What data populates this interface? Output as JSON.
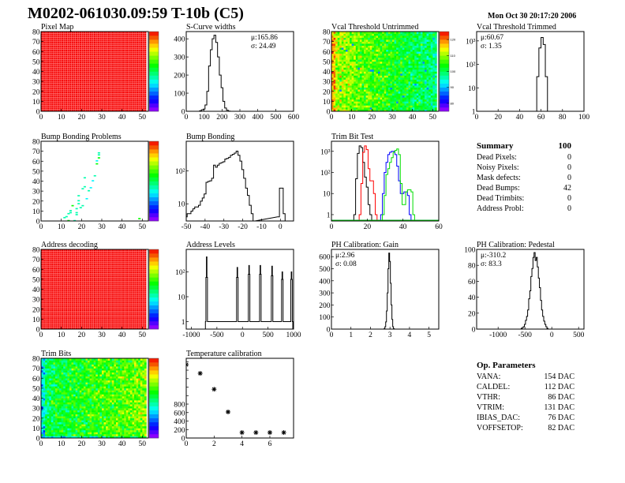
{
  "header": {
    "title": "M0202-061030.09:59 T-10b (C5)",
    "date": "Mon Oct 30 20:17:20 2006"
  },
  "summary": {
    "title": "Summary",
    "total": "100",
    "rows": [
      {
        "label": "Dead Pixels:",
        "value": "0"
      },
      {
        "label": "Noisy Pixels:",
        "value": "0"
      },
      {
        "label": "Mask defects:",
        "value": "0"
      },
      {
        "label": "Dead Bumps:",
        "value": "42"
      },
      {
        "label": "Dead Trimbits:",
        "value": "0"
      },
      {
        "label": "Address Probl:",
        "value": "0"
      }
    ]
  },
  "op_parameters": {
    "title": "Op. Parameters",
    "rows": [
      {
        "label": "VANA:",
        "value": "154 DAC"
      },
      {
        "label": "CALDEL:",
        "value": "112 DAC"
      },
      {
        "label": "VTHR:",
        "value": "86 DAC"
      },
      {
        "label": "VTRIM:",
        "value": "131 DAC"
      },
      {
        "label": "IBIAS_DAC:",
        "value": "76 DAC"
      },
      {
        "label": "VOFFSETOP:",
        "value": "82 DAC"
      }
    ]
  },
  "chart_data": [
    {
      "id": "pixel_map",
      "type": "heatmap",
      "title": "Pixel Map",
      "xlim": [
        0,
        53
      ],
      "ylim": [
        0,
        80
      ],
      "xticks": [
        0,
        10,
        20,
        30,
        40,
        50
      ],
      "yticks": [
        0,
        10,
        20,
        30,
        40,
        50,
        60,
        70,
        80
      ],
      "zlim": [
        0,
        10
      ],
      "uniform_value": 10
    },
    {
      "id": "s_curve",
      "type": "histogram",
      "title": "S-Curve widths",
      "xlim": [
        0,
        600
      ],
      "ylim": [
        0,
        440
      ],
      "xticks": [
        0,
        100,
        200,
        300,
        400,
        500,
        600
      ],
      "yticks": [
        0,
        100,
        200,
        300,
        400
      ],
      "stats": [
        "μ:165.86",
        "σ: 24.49"
      ],
      "stats_position": "top-right",
      "binwidth": 10,
      "series": [
        {
          "color": "#000000",
          "x": [
            80,
            90,
            100,
            110,
            120,
            130,
            140,
            150,
            160,
            170,
            180,
            190,
            200,
            210,
            220,
            230,
            240
          ],
          "y": [
            3,
            8,
            12,
            35,
            110,
            250,
            340,
            400,
            420,
            380,
            300,
            200,
            130,
            55,
            18,
            6,
            1
          ]
        }
      ]
    },
    {
      "id": "vcal_untrimmed",
      "type": "heatmap",
      "title": "Vcal Threshold Untrimmed",
      "xlim": [
        0,
        53
      ],
      "ylim": [
        0,
        80
      ],
      "xticks": [
        0,
        10,
        20,
        30,
        40,
        50
      ],
      "yticks": [
        0,
        10,
        20,
        30,
        40,
        50,
        60,
        70,
        80
      ],
      "zlim": [
        75,
        125
      ],
      "zticks": [
        80,
        90,
        100,
        110,
        120
      ]
    },
    {
      "id": "vcal_trimmed",
      "type": "histogram",
      "title": "Vcal Threshold Trimmed",
      "xlim": [
        0,
        100
      ],
      "ylim": [
        1,
        2500
      ],
      "ylog": true,
      "xticks": [
        0,
        20,
        40,
        60,
        80,
        100
      ],
      "yticks": [
        1,
        10,
        100,
        1000
      ],
      "ytick_labels": [
        "1",
        "10",
        "10²",
        "10³"
      ],
      "stats": [
        "μ:60.67",
        "σ: 1.35"
      ],
      "stats_position": "top-left",
      "binwidth": 2,
      "series": [
        {
          "color": "#000000",
          "x": [
            55,
            57,
            59,
            61,
            63,
            65
          ],
          "y": [
            1,
            30,
            500,
            1400,
            700,
            30
          ]
        }
      ]
    },
    {
      "id": "bump_problems",
      "type": "heatmap-scatter",
      "title": "Bump Bonding Problems",
      "xlim": [
        0,
        53
      ],
      "ylim": [
        0,
        80
      ],
      "xticks": [
        0,
        10,
        20,
        30,
        40,
        50
      ],
      "yticks": [
        0,
        10,
        20,
        30,
        40,
        50,
        60,
        70,
        80
      ],
      "zlim": [
        0,
        2
      ],
      "points": [
        [
          11,
          3,
          1
        ],
        [
          12,
          4,
          1
        ],
        [
          13,
          0,
          1.4
        ],
        [
          13,
          7,
          1
        ],
        [
          14,
          8,
          1
        ],
        [
          14,
          10,
          1
        ],
        [
          15,
          15,
          1.4
        ],
        [
          16,
          0,
          1
        ],
        [
          17,
          6,
          1
        ],
        [
          17,
          8,
          1
        ],
        [
          17,
          12,
          1
        ],
        [
          18,
          17,
          1
        ],
        [
          18,
          20,
          1
        ],
        [
          18,
          25,
          1
        ],
        [
          19,
          13,
          1
        ],
        [
          20,
          15,
          1
        ],
        [
          20,
          32,
          1
        ],
        [
          21,
          34,
          1
        ],
        [
          21,
          43,
          1
        ],
        [
          22,
          22,
          0.8
        ],
        [
          23,
          30,
          1
        ],
        [
          24,
          33,
          0.8
        ],
        [
          25,
          40,
          0.8
        ],
        [
          26,
          45,
          1
        ],
        [
          27,
          57,
          1.4
        ],
        [
          27,
          60,
          0.8
        ],
        [
          28,
          63,
          1.4
        ],
        [
          28,
          66,
          1
        ],
        [
          28,
          68,
          1
        ],
        [
          48,
          2,
          1.4
        ]
      ]
    },
    {
      "id": "bump_bonding",
      "type": "histogram",
      "title": "Bump Bonding",
      "xlim": [
        -50,
        7
      ],
      "ylim": [
        3,
        800
      ],
      "ylog": true,
      "xticks": [
        -50,
        -40,
        -30,
        -20,
        -10,
        0
      ],
      "yticks": [
        10,
        100
      ],
      "ytick_labels": [
        "10",
        "10²"
      ],
      "binwidth": 1,
      "series": [
        {
          "color": "#000000",
          "x": [
            -50,
            -49,
            -48,
            -47,
            -46,
            -45,
            -44,
            -43,
            -42,
            -41,
            -40,
            -39,
            -38,
            -37,
            -36,
            -35,
            -34,
            -33,
            -32,
            -31,
            -30,
            -29,
            -28,
            -27,
            -26,
            -25,
            -24,
            -23,
            -22,
            -21,
            -20,
            -19,
            -18,
            -17,
            -16,
            -15,
            -14,
            -1,
            0,
            1,
            2
          ],
          "y": [
            4,
            5,
            5,
            6,
            7,
            8,
            8,
            9,
            12,
            15,
            20,
            45,
            48,
            50,
            60,
            150,
            130,
            150,
            170,
            180,
            190,
            230,
            240,
            260,
            300,
            320,
            350,
            400,
            300,
            200,
            110,
            60,
            30,
            18,
            9,
            5,
            3,
            4,
            30,
            30,
            5
          ]
        }
      ]
    },
    {
      "id": "trim_bit_test",
      "type": "histogram",
      "title": "Trim Bit Test",
      "xlim": [
        0,
        60
      ],
      "ylim": [
        0.5,
        3000
      ],
      "ylog": true,
      "xticks": [
        0,
        20,
        40,
        60
      ],
      "yticks": [
        1,
        10,
        100,
        1000
      ],
      "ytick_labels": [
        "1",
        "10",
        "10²",
        "10³"
      ],
      "binwidth": 1,
      "series": [
        {
          "color": "#000000",
          "x": [
            13,
            14,
            15,
            16,
            17,
            18,
            19,
            20,
            21,
            22
          ],
          "y": [
            1,
            50,
            800,
            1800,
            1500,
            300,
            60,
            20,
            3,
            1
          ]
        },
        {
          "color": "#ff0000",
          "x": [
            16,
            17,
            18,
            19,
            20,
            21,
            22,
            23,
            24,
            25
          ],
          "y": [
            1,
            30,
            900,
            1800,
            1200,
            150,
            40,
            40,
            10,
            1
          ]
        },
        {
          "color": "#0000ff",
          "x": [
            28,
            29,
            30,
            31,
            32,
            33,
            34,
            35,
            36,
            37,
            38,
            39,
            40,
            41,
            42,
            43,
            44
          ],
          "y": [
            1,
            10,
            100,
            300,
            700,
            900,
            1000,
            1000,
            700,
            200,
            40,
            10,
            10,
            12,
            12,
            8,
            1
          ]
        },
        {
          "color": "#00dd00",
          "x": [
            29,
            30,
            31,
            32,
            33,
            34,
            35,
            36,
            37,
            38,
            39,
            40,
            41,
            42,
            43,
            44,
            45,
            46
          ],
          "y": [
            1,
            8,
            80,
            150,
            300,
            500,
            900,
            1100,
            1300,
            700,
            30,
            3,
            3,
            12,
            15,
            15,
            12,
            1
          ]
        }
      ]
    },
    {
      "id": "address_decoding",
      "type": "heatmap",
      "title": "Address decoding",
      "xlim": [
        0,
        53
      ],
      "ylim": [
        0,
        80
      ],
      "xticks": [
        0,
        10,
        20,
        30,
        40,
        50
      ],
      "yticks": [
        0,
        10,
        20,
        30,
        40,
        50,
        60,
        70,
        80
      ],
      "zlim": [
        0,
        1
      ],
      "uniform_value": 1
    },
    {
      "id": "address_levels",
      "type": "histogram",
      "title": "Address Levels",
      "xlim": [
        -1100,
        1000
      ],
      "ylim": [
        0.5,
        800
      ],
      "ylog": true,
      "xticks": [
        -1000,
        -500,
        0,
        500,
        1000
      ],
      "yticks": [
        1,
        10,
        100
      ],
      "ytick_labels": [
        "1",
        "10",
        "10²"
      ],
      "binwidth": 10,
      "series": [
        {
          "color": "#000000",
          "x": [
            -720,
            -710,
            -700,
            -690,
            -680,
            -120,
            -110,
            -100,
            -90,
            -80,
            110,
            120,
            130,
            140,
            150,
            330,
            340,
            350,
            360,
            370,
            560,
            570,
            580,
            590,
            600,
            760,
            770,
            780,
            790,
            800,
            940,
            950,
            960,
            970,
            980
          ],
          "y": [
            1,
            60,
            400,
            60,
            1,
            1,
            60,
            150,
            60,
            1,
            1,
            80,
            180,
            80,
            1,
            1,
            80,
            180,
            80,
            1,
            1,
            70,
            170,
            70,
            1,
            1,
            50,
            100,
            50,
            1,
            1,
            50,
            100,
            50,
            1
          ]
        }
      ]
    },
    {
      "id": "ph_gain",
      "type": "histogram",
      "title": "PH Calibration: Gain",
      "xlim": [
        0,
        5.5
      ],
      "ylim": [
        0,
        660
      ],
      "xticks": [
        0,
        1,
        2,
        3,
        4,
        5
      ],
      "yticks": [
        0,
        100,
        200,
        300,
        400,
        500,
        600
      ],
      "stats": [
        "μ:2.96",
        "σ: 0.08"
      ],
      "stats_position": "top-left",
      "binwidth": 0.04,
      "series": [
        {
          "color": "#000000",
          "x": [
            2.72,
            2.76,
            2.8,
            2.84,
            2.88,
            2.92,
            2.96,
            3.0,
            3.04,
            3.08,
            3.12,
            3.16,
            3.2
          ],
          "y": [
            5,
            20,
            60,
            150,
            300,
            500,
            630,
            560,
            380,
            200,
            80,
            20,
            3
          ]
        }
      ]
    },
    {
      "id": "ph_pedestal",
      "type": "histogram",
      "title": "PH Calibration: Pedestal",
      "xlim": [
        -1400,
        600
      ],
      "ylim": [
        0,
        100
      ],
      "xticks": [
        -1000,
        -500,
        0,
        500
      ],
      "yticks": [
        0,
        20,
        40,
        60,
        80,
        100
      ],
      "stats": [
        "μ:-310.2",
        "σ: 83.3"
      ],
      "stats_position": "top-left",
      "binwidth": 20,
      "series": [
        {
          "color": "#000000",
          "x": [
            -560,
            -540,
            -520,
            -500,
            -480,
            -460,
            -440,
            -420,
            -400,
            -380,
            -360,
            -340,
            -320,
            -300,
            -280,
            -260,
            -240,
            -220,
            -200,
            -180,
            -160,
            -140,
            -120,
            -100,
            -80
          ],
          "y": [
            1,
            2,
            3,
            6,
            11,
            16,
            24,
            38,
            48,
            66,
            76,
            90,
            96,
            86,
            90,
            78,
            64,
            52,
            36,
            24,
            16,
            10,
            6,
            3,
            1
          ]
        }
      ]
    },
    {
      "id": "trim_bits",
      "type": "heatmap",
      "title": "Trim Bits",
      "xlim": [
        0,
        53
      ],
      "ylim": [
        0,
        80
      ],
      "xticks": [
        0,
        10,
        20,
        30,
        40,
        50
      ],
      "yticks": [
        0,
        10,
        20,
        30,
        40,
        50,
        60,
        70,
        80
      ],
      "zlim": [
        0,
        16
      ]
    },
    {
      "id": "temperature",
      "type": "scatter",
      "title": "Temperature calibration",
      "xlim": [
        0,
        7.7
      ],
      "ylim": [
        0,
        1880
      ],
      "xticks": [
        0,
        2,
        4,
        6
      ],
      "yticks": [
        0,
        200,
        400,
        600,
        800,
        1000,
        1200,
        1400,
        1600,
        1800
      ],
      "ytick_labels": [
        "0",
        "200",
        "400",
        "600",
        "800",
        "",
        "",
        "",
        "",
        ""
      ],
      "x": [
        0,
        1,
        2,
        3,
        4,
        5,
        6,
        7
      ],
      "y": [
        1730,
        1525,
        1150,
        615,
        130,
        130,
        130,
        130
      ]
    }
  ]
}
